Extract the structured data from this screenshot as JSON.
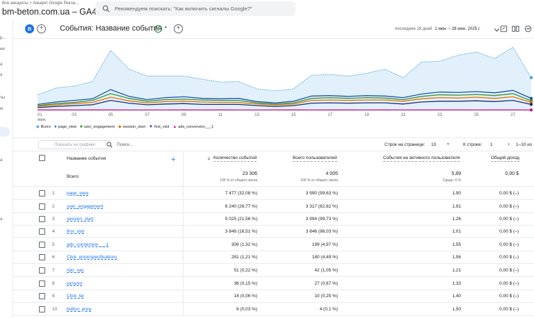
{
  "header": {
    "breadcrumb": "Все аккаунты > Аккаунт Google Рекла...",
    "account": "bm-beton.com.ua – GA4",
    "search_placeholder": "Рекомендуем поискать: \"Как включить сигналы Google?\""
  },
  "rail": {
    "items": [
      "р...",
      "ни",
      "а",
      "а",
      "ты",
      "ю",
      "а",
      "а"
    ]
  },
  "report": {
    "avatar": "B",
    "title": "События: Название события",
    "date_label": "последние 28 дней",
    "date_range": "1 июн. – 28 июн. 2025 г."
  },
  "chart_data": {
    "type": "line",
    "x": [
      "01",
      "02",
      "03",
      "04",
      "05",
      "06",
      "07",
      "08",
      "09",
      "10",
      "11",
      "12",
      "13",
      "14",
      "15",
      "16",
      "17",
      "18",
      "19",
      "20",
      "21",
      "22",
      "23",
      "24",
      "25",
      "26",
      "27",
      "28"
    ],
    "x_tick_labels": [
      "01",
      "03",
      "05",
      "07",
      "09",
      "11",
      "13",
      "15",
      "17",
      "19",
      "21",
      "23",
      "25",
      "27"
    ],
    "x_first_sub": "июн.",
    "series": [
      {
        "name": "Всего",
        "color": "#4ba3dc",
        "values": [
          390,
          560,
          610,
          720,
          1500,
          1030,
          860,
          860,
          860,
          780,
          710,
          720,
          540,
          490,
          540,
          880,
          900,
          860,
          930,
          1030,
          820,
          1210,
          1230,
          1380,
          1460,
          1300,
          1580,
          820
        ]
      },
      {
        "name": "page_view",
        "color": "#1a56a8",
        "values": [
          150,
          210,
          250,
          290,
          520,
          350,
          270,
          320,
          340,
          300,
          290,
          300,
          220,
          190,
          230,
          360,
          370,
          350,
          370,
          360,
          320,
          410,
          460,
          450,
          470,
          440,
          500,
          300
        ]
      },
      {
        "name": "user_engagement",
        "color": "#3c8d3a",
        "values": [
          120,
          170,
          200,
          250,
          420,
          300,
          230,
          270,
          280,
          260,
          250,
          250,
          190,
          160,
          190,
          300,
          320,
          300,
          320,
          310,
          270,
          350,
          390,
          380,
          400,
          370,
          420,
          240
        ]
      },
      {
        "name": "session_start",
        "color": "#e37400",
        "values": [
          100,
          140,
          170,
          200,
          330,
          240,
          190,
          220,
          230,
          210,
          200,
          200,
          160,
          140,
          160,
          250,
          260,
          250,
          260,
          260,
          230,
          290,
          320,
          310,
          330,
          300,
          340,
          200
        ]
      },
      {
        "name": "first_visit",
        "color": "#202d6e",
        "values": [
          70,
          100,
          120,
          140,
          250,
          180,
          140,
          160,
          170,
          150,
          150,
          150,
          120,
          100,
          120,
          180,
          190,
          180,
          190,
          190,
          160,
          210,
          230,
          230,
          240,
          220,
          250,
          150
        ]
      },
      {
        "name": "ads_conversion___1",
        "color": "#c51a8a",
        "values": [
          10,
          12,
          11,
          12,
          13,
          11,
          10,
          11,
          12,
          11,
          12,
          11,
          10,
          11,
          12,
          11,
          13,
          12,
          11,
          12,
          11,
          12,
          13,
          12,
          11,
          12,
          13,
          11
        ]
      }
    ]
  },
  "toolbar": {
    "plot_button": "Показать на графике",
    "search_placeholder": "Поиск...",
    "rows_per_page_label": "Строк на странице:",
    "rows_per_page": "10",
    "goto_label": "К строке:",
    "goto_value": "1",
    "range": "1–10 из"
  },
  "table": {
    "headers": {
      "name": "Название события",
      "count": "Количество событий",
      "users": "Всего пользователей",
      "per_user": "События на активного пользователя",
      "revenue": "Общий доход"
    },
    "totals": {
      "label": "Всего",
      "count": "23 306",
      "count_sub": "100 % от общего числа",
      "users": "4 005",
      "users_sub": "100 % от общего числа",
      "per_user": "5,89",
      "per_user_sub": "Средн. 0 %",
      "revenue": "0,00 $"
    },
    "rows": [
      {
        "n": "1",
        "name": "page_view",
        "count": "7 477 (32,08 %)",
        "users": "3 990 (99,63 %)",
        "per_user": "1,90",
        "revenue": "0,00 $ (–)"
      },
      {
        "n": "2",
        "name": "user_engagement",
        "count": "6 240 (26,77 %)",
        "users": "3 317 (82,82 %)",
        "per_user": "1,91",
        "revenue": "0,00 $ (–)"
      },
      {
        "n": "3",
        "name": "session_start",
        "count": "5 025 (21,56 %)",
        "users": "3 994 (99,73 %)",
        "per_user": "1,26",
        "revenue": "0,00 $ (–)"
      },
      {
        "n": "4",
        "name": "first_visit",
        "count": "3 848 (16,51 %)",
        "users": "3 846 (96,03 %)",
        "per_user": "1,01",
        "revenue": "0,00 $ (–)"
      },
      {
        "n": "5",
        "name": "ads_conversion___1",
        "count": "308 (1,32 %)",
        "users": "199 (4,97 %)",
        "per_user": "1,55",
        "revenue": "0,00 $ (–)"
      },
      {
        "n": "6",
        "name": "Click_price/specifications",
        "count": "281 (1,21 %)",
        "users": "180 (4,49 %)",
        "per_user": "1,56",
        "revenue": "0,00 $ (–)"
      },
      {
        "n": "7",
        "name": "про_нас",
        "count": "51 (0,22 %)",
        "users": "42 (1,05 %)",
        "per_user": "1,21",
        "revenue": "0,00 $ (–)"
      },
      {
        "n": "8",
        "name": "каталог",
        "count": "36 (0,15 %)",
        "users": "27 (0,67 %)",
        "per_user": "1,33",
        "revenue": "0,00 $ (–)"
      },
      {
        "n": "9",
        "name": "Click_tel",
        "count": "14 (0,06 %)",
        "users": "10 (0,25 %)",
        "per_user": "1,40",
        "revenue": "0,00 $ (–)"
      },
      {
        "n": "10",
        "name": "button_price",
        "count": "6 (0,03 %)",
        "users": "4 (0,1 %)",
        "per_user": "1,50",
        "revenue": "0,00 $ (–)"
      }
    ]
  }
}
